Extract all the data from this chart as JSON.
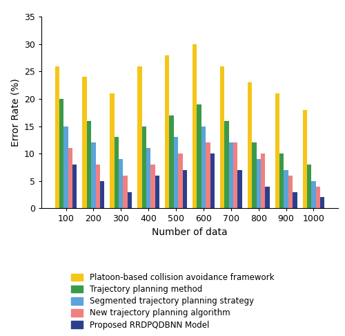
{
  "categories": [
    100,
    200,
    300,
    400,
    500,
    600,
    700,
    800,
    900,
    1000
  ],
  "series": {
    "Platoon-based collision avoidance framework": [
      26,
      24,
      21,
      26,
      28,
      30,
      26,
      23,
      21,
      18
    ],
    "Trajectory planning method": [
      20,
      16,
      13,
      15,
      17,
      19,
      16,
      12,
      10,
      8
    ],
    "Segmented trajectory planning strategy": [
      15,
      12,
      9,
      11,
      13,
      15,
      12,
      9,
      7,
      5
    ],
    "New trajectory planning algorithm": [
      11,
      8,
      6,
      8,
      10,
      12,
      12,
      10,
      6,
      4
    ],
    "Proposed RRDPQDBNN Model": [
      8,
      5,
      3,
      6,
      7,
      10,
      7,
      4,
      3,
      2
    ]
  },
  "colors": {
    "Platoon-based collision avoidance framework": "#F5C518",
    "Trajectory planning method": "#3A9A4A",
    "Segmented trajectory planning strategy": "#5BA3D9",
    "New trajectory planning algorithm": "#F08080",
    "Proposed RRDPQDBNN Model": "#2B3F8C"
  },
  "ylabel": "Error Rate (%)",
  "xlabel": "Number of data",
  "ylim": [
    0,
    35
  ],
  "yticks": [
    0,
    5,
    10,
    15,
    20,
    25,
    30,
    35
  ],
  "background_color": "#FFFFFF",
  "bar_width": 0.16
}
